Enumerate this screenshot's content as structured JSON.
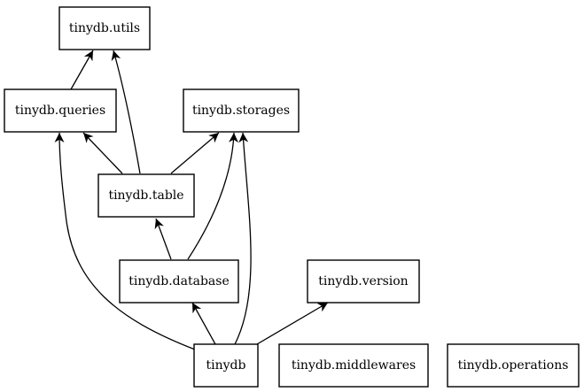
{
  "diagram": {
    "nodes": [
      {
        "id": "utils",
        "label": "tinydb.utils"
      },
      {
        "id": "queries",
        "label": "tinydb.queries"
      },
      {
        "id": "storages",
        "label": "tinydb.storages"
      },
      {
        "id": "table",
        "label": "tinydb.table"
      },
      {
        "id": "database",
        "label": "tinydb.database"
      },
      {
        "id": "version",
        "label": "tinydb.version"
      },
      {
        "id": "tinydb",
        "label": "tinydb"
      },
      {
        "id": "middlewares",
        "label": "tinydb.middlewares"
      },
      {
        "id": "operations",
        "label": "tinydb.operations"
      }
    ],
    "edges": [
      {
        "from": "queries",
        "to": "utils"
      },
      {
        "from": "table",
        "to": "utils"
      },
      {
        "from": "table",
        "to": "queries"
      },
      {
        "from": "table",
        "to": "storages"
      },
      {
        "from": "database",
        "to": "table"
      },
      {
        "from": "database",
        "to": "storages"
      },
      {
        "from": "tinydb",
        "to": "database"
      },
      {
        "from": "tinydb",
        "to": "queries"
      },
      {
        "from": "tinydb",
        "to": "storages"
      },
      {
        "from": "tinydb",
        "to": "version"
      }
    ]
  }
}
